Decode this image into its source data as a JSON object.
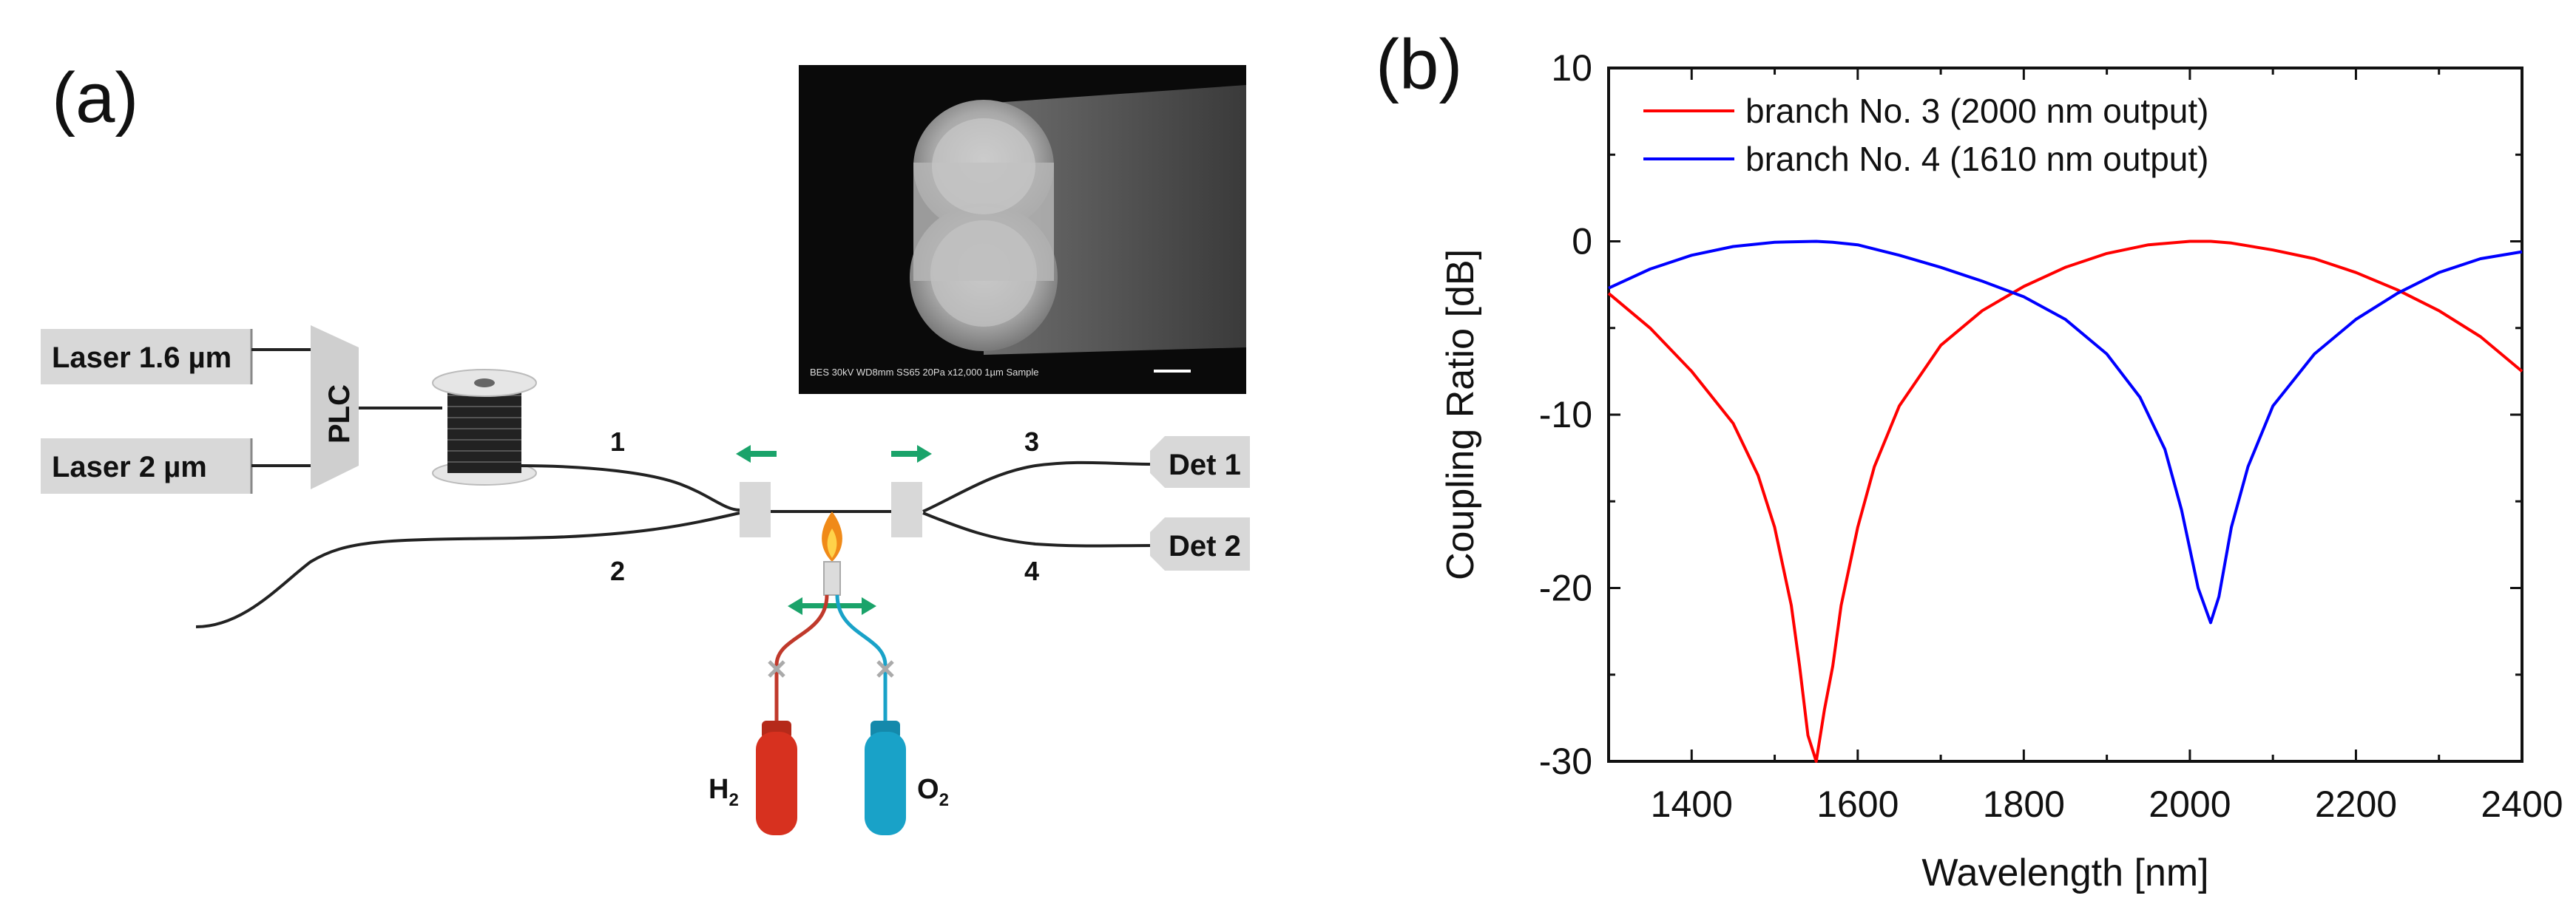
{
  "panel_a": {
    "label": "(a)",
    "laser1": "Laser 1.6 µm",
    "laser2": "Laser 2 µm",
    "plc": "PLC",
    "det1": "Det 1",
    "det2": "Det 2",
    "ports": [
      "1",
      "2",
      "3",
      "4"
    ],
    "h2": {
      "main": "H",
      "sub": "2"
    },
    "o2": {
      "main": "O",
      "sub": "2"
    },
    "sem_caption": "BES 30kV WD8mm SS65 20Pa x12,000 1µm Sample",
    "colors": {
      "h2_tank": "#d7311f",
      "o2_tank": "#19a2c8",
      "arrow": "#1aa36a",
      "flame": "#f08a18"
    }
  },
  "panel_b": {
    "label": "(b)"
  },
  "chart_data": {
    "type": "line",
    "title": "",
    "xlabel": "Wavelength [nm]",
    "ylabel": "Coupling Ratio [dB]",
    "xlim": [
      1300,
      2400
    ],
    "ylim": [
      -30,
      10
    ],
    "xticks": [
      1400,
      1600,
      1800,
      2000,
      2200,
      2400
    ],
    "yticks": [
      10,
      0,
      -10,
      -20,
      -30
    ],
    "grid": false,
    "legend_position": "top-left",
    "series": [
      {
        "name": "branch No. 3 (2000 nm output)",
        "color": "#ff0000",
        "x": [
          1300,
          1350,
          1400,
          1450,
          1480,
          1500,
          1520,
          1530,
          1540,
          1550,
          1560,
          1570,
          1580,
          1600,
          1620,
          1650,
          1700,
          1750,
          1800,
          1850,
          1900,
          1950,
          2000,
          2025,
          2050,
          2100,
          2150,
          2200,
          2250,
          2300,
          2350,
          2400
        ],
        "y": [
          -3.0,
          -5.0,
          -7.5,
          -10.5,
          -13.5,
          -16.5,
          -21.0,
          -24.5,
          -28.5,
          -30.0,
          -27.0,
          -24.5,
          -21.0,
          -16.5,
          -13.0,
          -9.5,
          -6.0,
          -4.0,
          -2.6,
          -1.5,
          -0.7,
          -0.2,
          0.0,
          0.0,
          -0.1,
          -0.5,
          -1.0,
          -1.8,
          -2.8,
          -4.0,
          -5.5,
          -7.5
        ]
      },
      {
        "name": "branch No. 4 (1610 nm output)",
        "color": "#0000ff",
        "x": [
          1300,
          1350,
          1400,
          1450,
          1500,
          1550,
          1570,
          1600,
          1650,
          1700,
          1750,
          1800,
          1850,
          1900,
          1940,
          1970,
          1990,
          2010,
          2025,
          2035,
          2050,
          2070,
          2100,
          2150,
          2200,
          2250,
          2300,
          2350,
          2400
        ],
        "y": [
          -2.7,
          -1.6,
          -0.8,
          -0.3,
          -0.05,
          0.0,
          -0.05,
          -0.2,
          -0.8,
          -1.5,
          -2.3,
          -3.2,
          -4.5,
          -6.5,
          -9.0,
          -12.0,
          -15.5,
          -20.0,
          -22.0,
          -20.5,
          -16.5,
          -13.0,
          -9.5,
          -6.5,
          -4.5,
          -3.0,
          -1.8,
          -1.0,
          -0.6
        ]
      }
    ]
  }
}
